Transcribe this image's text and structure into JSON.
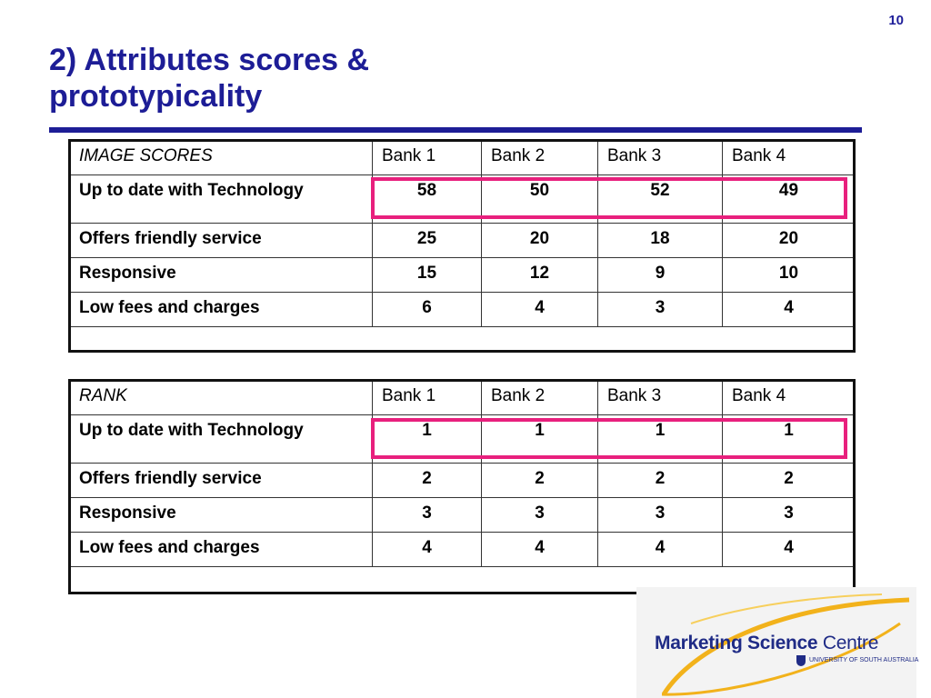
{
  "page_number": "10",
  "title": {
    "line1": "2) Attributes scores &",
    "line2": "prototypicality"
  },
  "image_scores": {
    "corner": "IMAGE SCORES",
    "headers": [
      "Bank 1",
      "Bank 2",
      "Bank 3",
      "Bank 4"
    ],
    "rows": [
      {
        "label": "Up to date with Technology",
        "values": [
          "58",
          "50",
          "52",
          "49"
        ]
      },
      {
        "label": "Offers friendly service",
        "values": [
          "25",
          "20",
          "18",
          "20"
        ]
      },
      {
        "label": "Responsive",
        "values": [
          "15",
          "12",
          "9",
          "10"
        ]
      },
      {
        "label": "Low fees and charges",
        "values": [
          "6",
          "4",
          "3",
          "4"
        ]
      }
    ]
  },
  "rank": {
    "corner": "RANK",
    "headers": [
      "Bank 1",
      "Bank 2",
      "Bank 3",
      "Bank 4"
    ],
    "rows": [
      {
        "label": "Up to date with Technology",
        "values": [
          "1",
          "1",
          "1",
          "1"
        ]
      },
      {
        "label": "Offers friendly service",
        "values": [
          "2",
          "2",
          "2",
          "2"
        ]
      },
      {
        "label": "Responsive",
        "values": [
          "3",
          "3",
          "3",
          "3"
        ]
      },
      {
        "label": "Low fees and charges",
        "values": [
          "4",
          "4",
          "4",
          "4"
        ]
      }
    ]
  },
  "highlight_color": "#e8207d",
  "logo": {
    "name_bold": "Marketing Science",
    "name_light": "Centre",
    "subtitle": "UNIVERSITY OF SOUTH AUSTRALIA"
  }
}
